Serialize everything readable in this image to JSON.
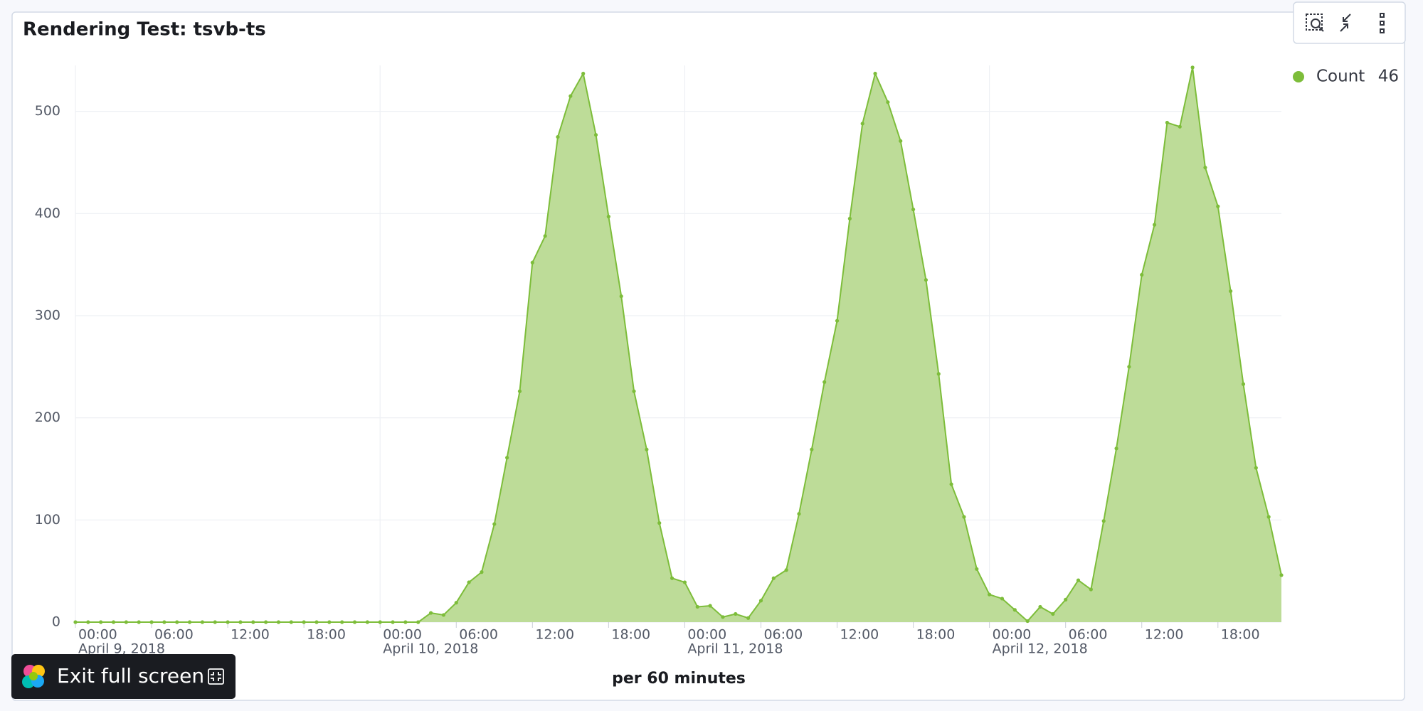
{
  "chart_data": {
    "type": "area",
    "title": "Rendering Test: tsvb-ts",
    "x_label": "per 60 minutes",
    "x": [
      "2018-04-09T00:00",
      "2018-04-09T01:00",
      "2018-04-09T02:00",
      "2018-04-09T03:00",
      "2018-04-09T04:00",
      "2018-04-09T05:00",
      "2018-04-09T06:00",
      "2018-04-09T07:00",
      "2018-04-09T08:00",
      "2018-04-09T09:00",
      "2018-04-09T10:00",
      "2018-04-09T11:00",
      "2018-04-09T12:00",
      "2018-04-09T13:00",
      "2018-04-09T14:00",
      "2018-04-09T15:00",
      "2018-04-09T16:00",
      "2018-04-09T17:00",
      "2018-04-09T18:00",
      "2018-04-09T19:00",
      "2018-04-09T20:00",
      "2018-04-09T21:00",
      "2018-04-09T22:00",
      "2018-04-09T23:00",
      "2018-04-10T00:00",
      "2018-04-10T01:00",
      "2018-04-10T02:00",
      "2018-04-10T03:00",
      "2018-04-10T04:00",
      "2018-04-10T05:00",
      "2018-04-10T06:00",
      "2018-04-10T07:00",
      "2018-04-10T08:00",
      "2018-04-10T09:00",
      "2018-04-10T10:00",
      "2018-04-10T11:00",
      "2018-04-10T12:00",
      "2018-04-10T13:00",
      "2018-04-10T14:00",
      "2018-04-10T15:00",
      "2018-04-10T16:00",
      "2018-04-10T17:00",
      "2018-04-10T18:00",
      "2018-04-10T19:00",
      "2018-04-10T20:00",
      "2018-04-10T21:00",
      "2018-04-10T22:00",
      "2018-04-10T23:00",
      "2018-04-11T00:00",
      "2018-04-11T01:00",
      "2018-04-11T02:00",
      "2018-04-11T03:00",
      "2018-04-11T04:00",
      "2018-04-11T05:00",
      "2018-04-11T06:00",
      "2018-04-11T07:00",
      "2018-04-11T08:00",
      "2018-04-11T09:00",
      "2018-04-11T10:00",
      "2018-04-11T11:00",
      "2018-04-11T12:00",
      "2018-04-11T13:00",
      "2018-04-11T14:00",
      "2018-04-11T15:00",
      "2018-04-11T16:00",
      "2018-04-11T17:00",
      "2018-04-11T18:00",
      "2018-04-11T19:00",
      "2018-04-11T20:00",
      "2018-04-11T21:00",
      "2018-04-11T22:00",
      "2018-04-11T23:00",
      "2018-04-12T00:00",
      "2018-04-12T01:00",
      "2018-04-12T02:00",
      "2018-04-12T03:00",
      "2018-04-12T04:00",
      "2018-04-12T05:00",
      "2018-04-12T06:00",
      "2018-04-12T07:00",
      "2018-04-12T08:00",
      "2018-04-12T09:00",
      "2018-04-12T10:00",
      "2018-04-12T11:00",
      "2018-04-12T12:00",
      "2018-04-12T13:00",
      "2018-04-12T14:00",
      "2018-04-12T15:00",
      "2018-04-12T16:00",
      "2018-04-12T17:00",
      "2018-04-12T18:00",
      "2018-04-12T19:00",
      "2018-04-12T20:00",
      "2018-04-12T21:00",
      "2018-04-12T22:00",
      "2018-04-12T23:00"
    ],
    "series": [
      {
        "name": "Count",
        "color": "#7dbd3a",
        "fill": "#bddc98",
        "values": [
          0,
          0,
          0,
          0,
          0,
          0,
          0,
          0,
          0,
          0,
          0,
          0,
          0,
          0,
          0,
          0,
          0,
          0,
          0,
          0,
          0,
          0,
          0,
          0,
          0,
          0,
          0,
          0,
          9,
          7,
          19,
          39,
          49,
          96,
          161,
          226,
          352,
          378,
          475,
          515,
          537,
          477,
          397,
          319,
          226,
          169,
          97,
          43,
          39,
          15,
          16,
          5,
          8,
          4,
          21,
          43,
          51,
          106,
          169,
          235,
          295,
          395,
          488,
          537,
          509,
          471,
          404,
          335,
          243,
          135,
          103,
          52,
          27,
          23,
          12,
          1,
          15,
          8,
          22,
          41,
          32,
          99,
          170,
          250,
          340,
          389,
          489,
          485,
          543,
          445,
          407,
          324,
          233,
          151,
          103,
          46
        ]
      }
    ],
    "xlim": [
      "2018-04-09T00:00",
      "2018-04-12T23:00"
    ],
    "xticks": [
      {
        "value": "2018-04-09T00:00",
        "label": "00:00"
      },
      {
        "value": "2018-04-09T06:00",
        "label": "06:00"
      },
      {
        "value": "2018-04-09T12:00",
        "label": "12:00"
      },
      {
        "value": "2018-04-09T18:00",
        "label": "18:00"
      },
      {
        "value": "2018-04-10T00:00",
        "label": "00:00"
      },
      {
        "value": "2018-04-10T06:00",
        "label": "06:00"
      },
      {
        "value": "2018-04-10T12:00",
        "label": "12:00"
      },
      {
        "value": "2018-04-10T18:00",
        "label": "18:00"
      },
      {
        "value": "2018-04-11T00:00",
        "label": "00:00"
      },
      {
        "value": "2018-04-11T06:00",
        "label": "06:00"
      },
      {
        "value": "2018-04-11T12:00",
        "label": "12:00"
      },
      {
        "value": "2018-04-11T18:00",
        "label": "18:00"
      },
      {
        "value": "2018-04-12T00:00",
        "label": "00:00"
      },
      {
        "value": "2018-04-12T06:00",
        "label": "06:00"
      },
      {
        "value": "2018-04-12T12:00",
        "label": "12:00"
      },
      {
        "value": "2018-04-12T18:00",
        "label": "18:00"
      }
    ],
    "x_date_labels": [
      {
        "value": "2018-04-09T00:00",
        "label": "April 9, 2018"
      },
      {
        "value": "2018-04-10T00:00",
        "label": "April 10, 2018"
      },
      {
        "value": "2018-04-11T00:00",
        "label": "April 11, 2018"
      },
      {
        "value": "2018-04-12T00:00",
        "label": "April 12, 2018"
      }
    ],
    "ylim": [
      0,
      545
    ],
    "yticks": [
      0,
      100,
      200,
      300,
      400,
      500
    ],
    "grid": true,
    "legend": "top-right"
  },
  "ui": {
    "exit_button": "Exit full screen"
  }
}
